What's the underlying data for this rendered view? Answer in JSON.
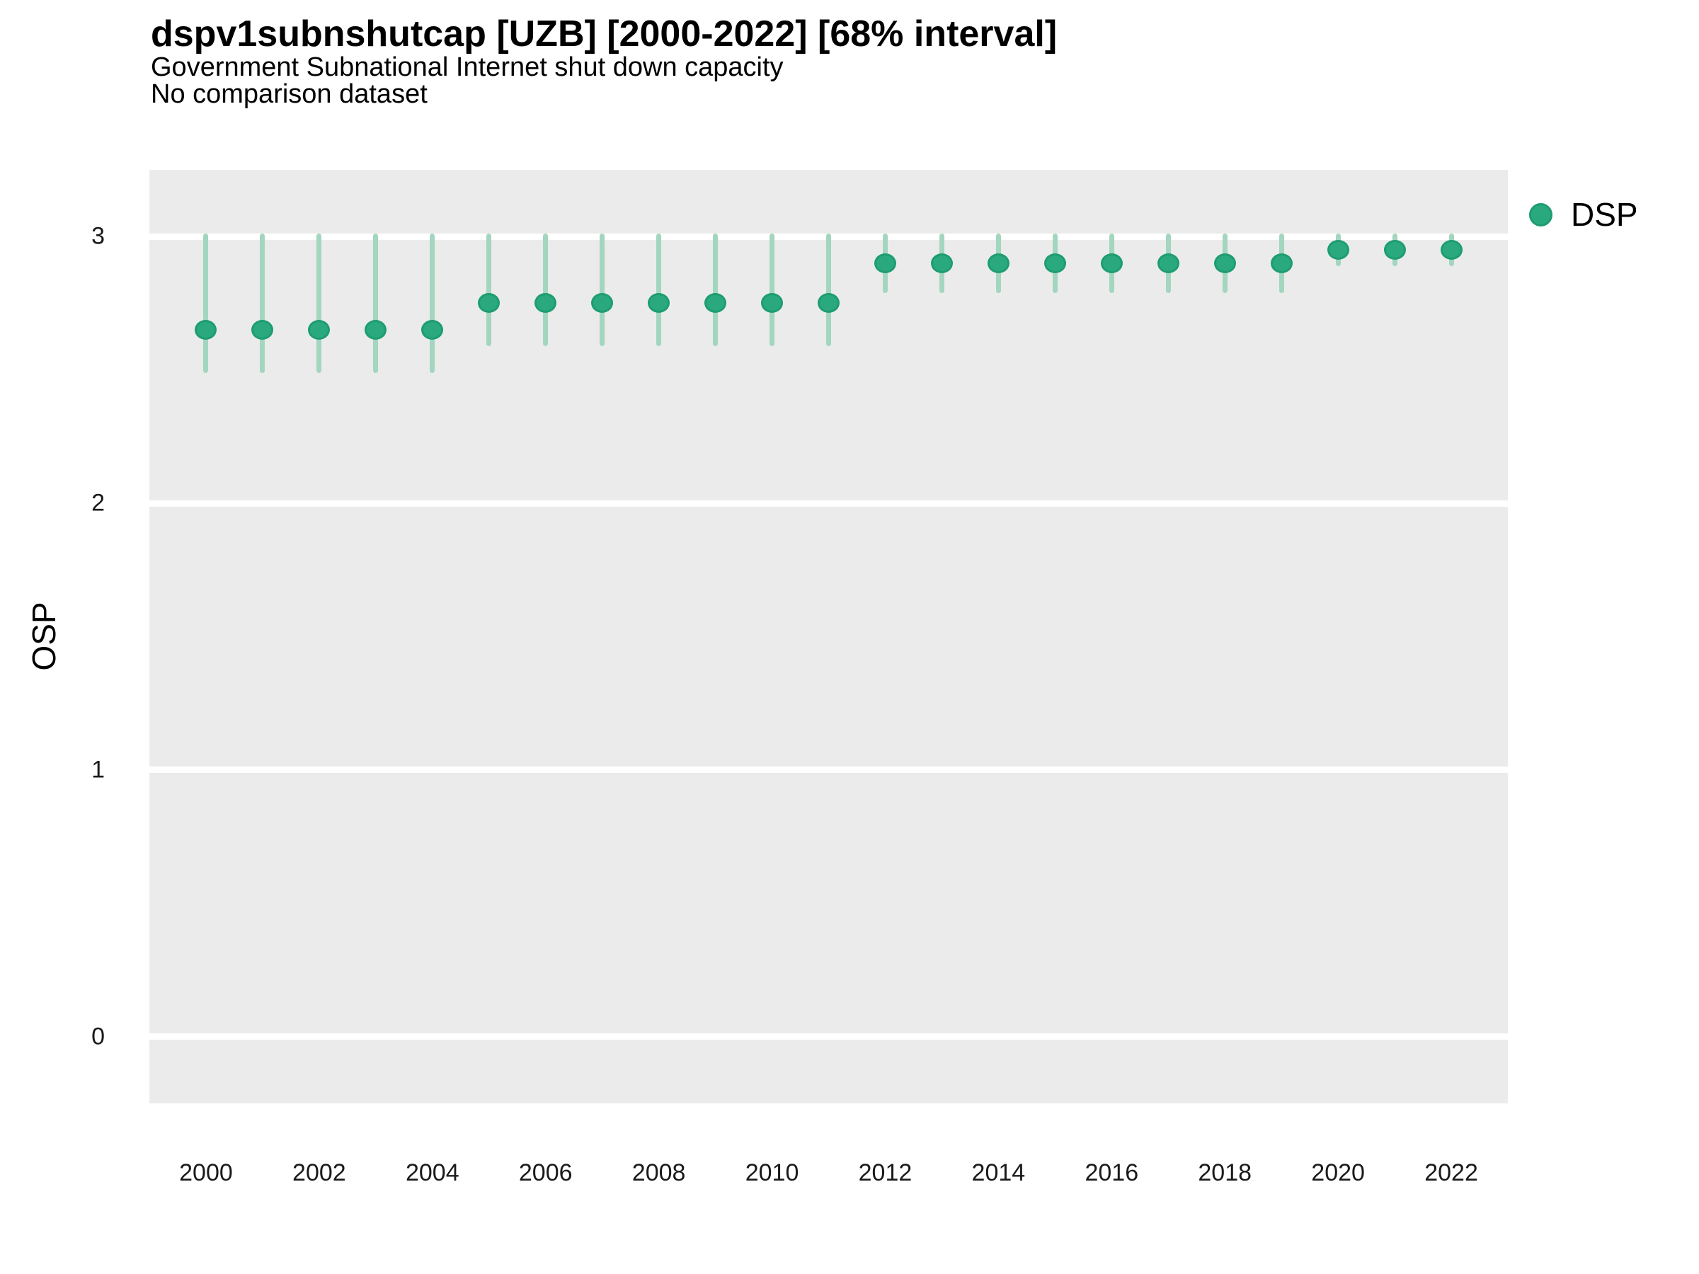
{
  "header": {
    "title": "dspv1subnshutcap [UZB] [2000-2022] [68% interval]",
    "subtitle": "Government Subnational Internet shut down capacity",
    "note": "No comparison dataset"
  },
  "legend": {
    "items": [
      {
        "label": "DSP",
        "marker": "circle-icon",
        "color": "#2aa87e"
      }
    ]
  },
  "axes": {
    "y_label": "OSP",
    "y_ticks": [
      3,
      2,
      1,
      0
    ],
    "x_ticks": [
      2000,
      2002,
      2004,
      2006,
      2008,
      2010,
      2012,
      2014,
      2016,
      2018,
      2020,
      2022
    ]
  },
  "colors": {
    "point": "#2aa87e",
    "point_border": "#1e9c72",
    "interval_line": "#a2d6bf",
    "panel_bg": "#ebebeb",
    "grid": "#ffffff",
    "text": "#000000"
  },
  "chart_data": {
    "type": "scatter",
    "subtype": "pointrange",
    "title": "dspv1subnshutcap [UZB] [2000-2022] [68% interval]",
    "subtitle": "Government Subnational Internet shut down capacity",
    "note": "No comparison dataset",
    "xlabel": "",
    "ylabel": "OSP",
    "interval": "68%",
    "xlim": [
      1999,
      2023
    ],
    "ylim": [
      -0.25,
      3.25
    ],
    "grid": "horizontal-only",
    "legend_position": "right",
    "series": [
      {
        "name": "DSP",
        "x": [
          2000,
          2001,
          2002,
          2003,
          2004,
          2005,
          2006,
          2007,
          2008,
          2009,
          2010,
          2011,
          2012,
          2013,
          2014,
          2015,
          2016,
          2017,
          2018,
          2019,
          2020,
          2021,
          2022
        ],
        "y": [
          2.65,
          2.65,
          2.65,
          2.65,
          2.65,
          2.75,
          2.75,
          2.75,
          2.75,
          2.75,
          2.75,
          2.75,
          2.9,
          2.9,
          2.9,
          2.9,
          2.9,
          2.9,
          2.9,
          2.9,
          2.95,
          2.95,
          2.95
        ],
        "y_lower": [
          2.5,
          2.5,
          2.5,
          2.5,
          2.5,
          2.6,
          2.6,
          2.6,
          2.6,
          2.6,
          2.6,
          2.6,
          2.8,
          2.8,
          2.8,
          2.8,
          2.8,
          2.8,
          2.8,
          2.8,
          2.9,
          2.9,
          2.9
        ],
        "y_upper": [
          3.0,
          3.0,
          3.0,
          3.0,
          3.0,
          3.0,
          3.0,
          3.0,
          3.0,
          3.0,
          3.0,
          3.0,
          3.0,
          3.0,
          3.0,
          3.0,
          3.0,
          3.0,
          3.0,
          3.0,
          3.0,
          3.0,
          3.0
        ]
      }
    ]
  }
}
